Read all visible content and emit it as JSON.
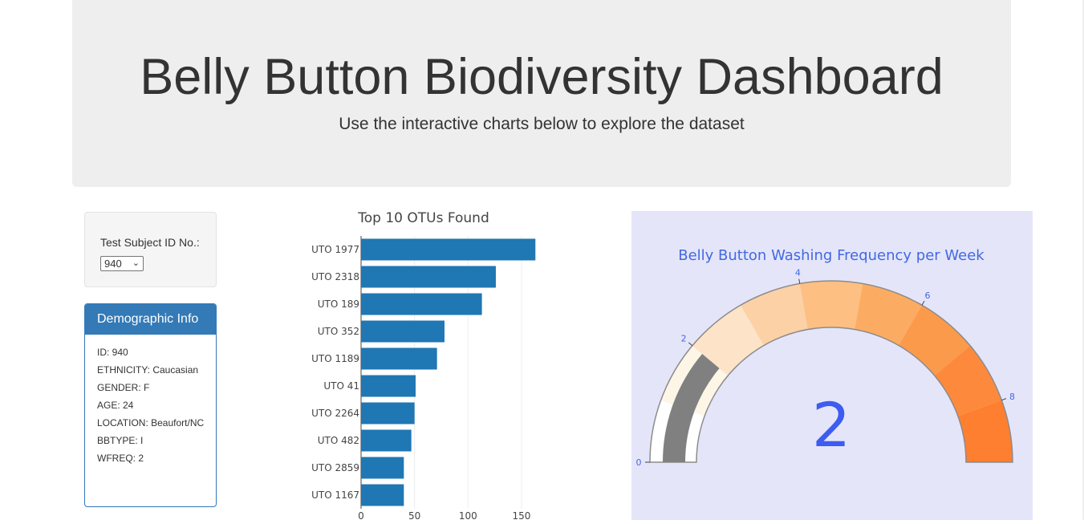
{
  "header": {
    "title": "Belly Button Biodiversity Dashboard",
    "subtitle": "Use the interactive charts below to explore the dataset"
  },
  "selector": {
    "label": "Test Subject ID No.:",
    "value": "940"
  },
  "demographics": {
    "title": "Demographic Info",
    "rows": [
      "ID: 940",
      "ETHNICITY: Caucasian",
      "GENDER: F",
      "AGE: 24",
      "LOCATION: Beaufort/NC",
      "BBTYPE: I",
      "WFREQ: 2"
    ]
  },
  "chart_data": [
    {
      "type": "bar",
      "orientation": "horizontal",
      "title": "Top 10 OTUs Found",
      "categories": [
        "UTO 1977",
        "UTO 2318",
        "UTO 189",
        "UTO 352",
        "UTO 1189",
        "UTO 41",
        "UTO 2264",
        "UTO 482",
        "UTO 2859",
        "UTO 1167"
      ],
      "values": [
        163,
        126,
        113,
        78,
        71,
        51,
        50,
        47,
        40,
        40
      ],
      "xlim": [
        0,
        170
      ],
      "xticks": [
        0,
        50,
        100,
        150
      ],
      "color": "#1f77b4",
      "grid": true
    },
    {
      "type": "gauge",
      "title": "Belly Button Washing Frequency per Week",
      "value": 2,
      "range": [
        0,
        9
      ],
      "tick_labels": [
        "0",
        "2",
        "4",
        "6",
        "8"
      ],
      "bar_color": "#808080",
      "step_colors": [
        "#ffffff",
        "#fdf6e7",
        "#fde3c8",
        "#fdd1a6",
        "#fdbf82",
        "#fcac62",
        "#fc9a4b",
        "#fd8a3c",
        "#fd7f2f"
      ],
      "title_color": "#4169e1",
      "number_color": "#3d5cf0"
    }
  ]
}
